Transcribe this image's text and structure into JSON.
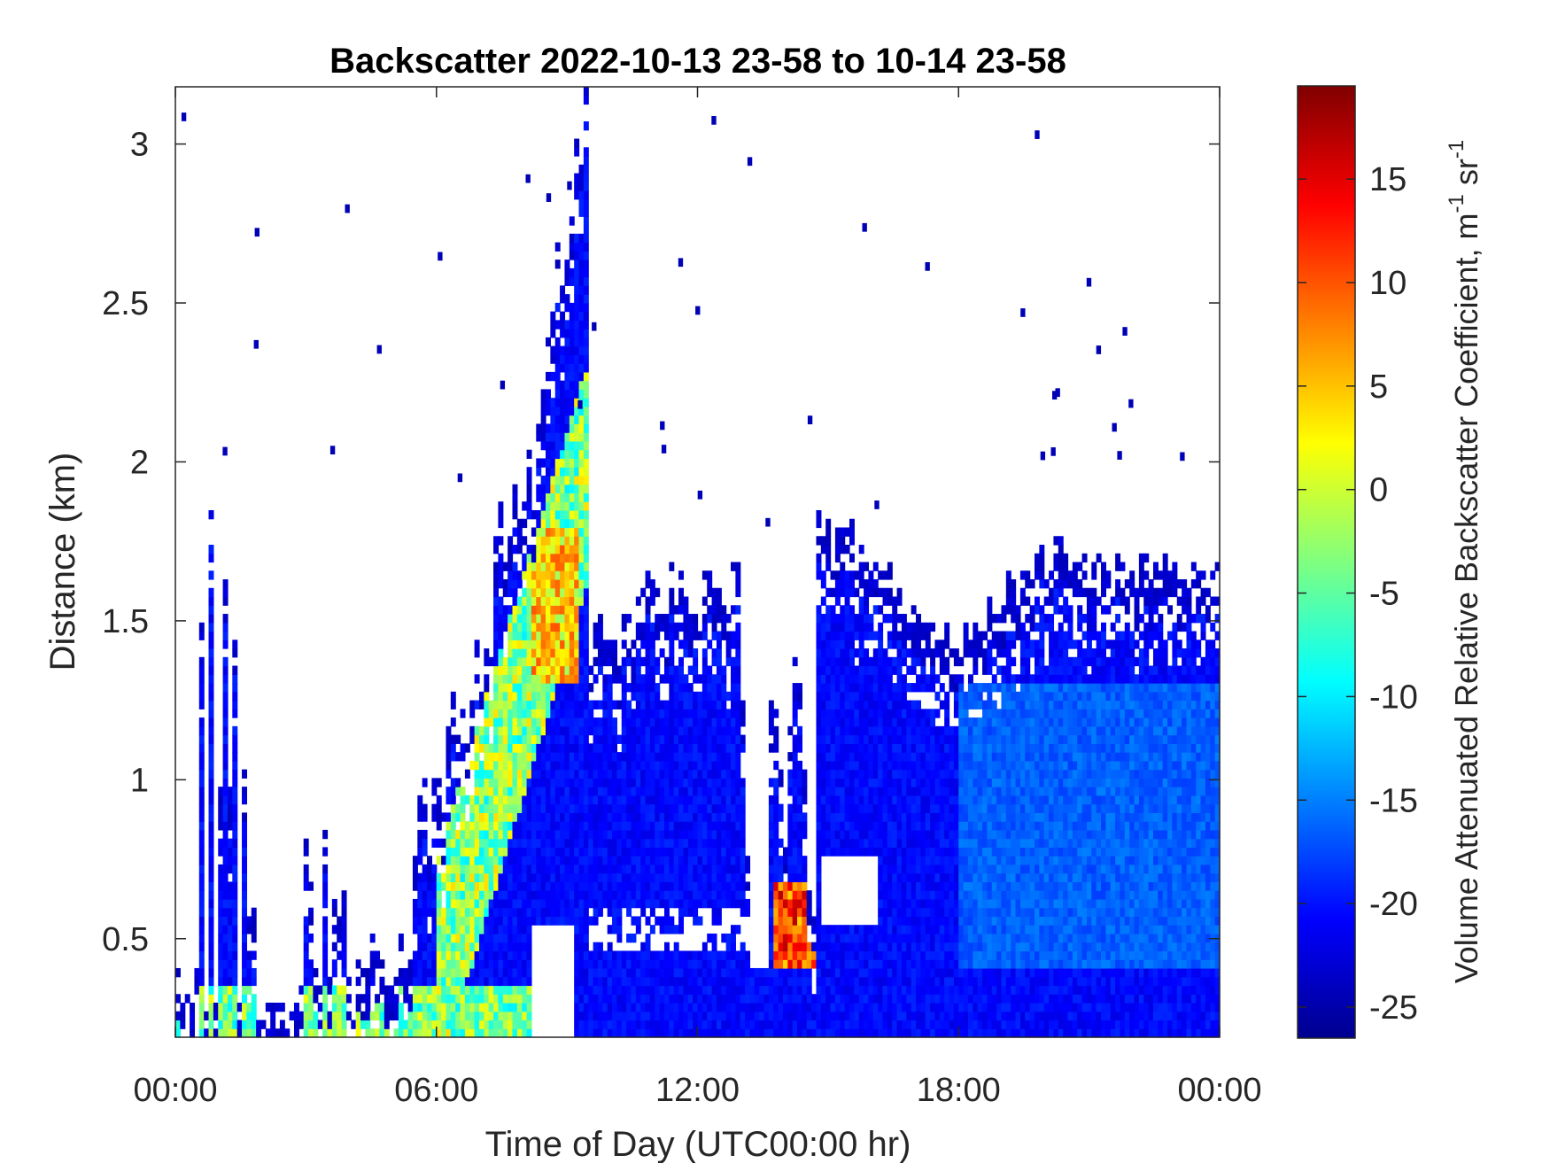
{
  "chart_data": {
    "type": "heatmap",
    "title": "Backscatter 2022-10-13 23-58 to 10-14 23-58",
    "xlabel": "Time of Day (UTC00:00 hr)",
    "ylabel": "Distance (km)",
    "xlim": [
      0,
      24
    ],
    "ylim": [
      0.19,
      3.18
    ],
    "x_ticks": [
      0,
      6,
      12,
      18,
      24
    ],
    "x_tick_labels": [
      "00:00",
      "06:00",
      "12:00",
      "18:00",
      "00:00"
    ],
    "y_ticks": [
      0.5,
      1,
      1.5,
      2,
      2.5,
      3
    ],
    "y_tick_labels": [
      "0.5",
      "1",
      "1.5",
      "2",
      "2.5",
      "3"
    ],
    "colorbar": {
      "label": "Volume Attenuated Relative Backscatter Coefficient, m",
      "label_sup_1": "-1",
      "label_unit_2": " sr",
      "label_sup_2": "-1",
      "range": [
        -26.5,
        19.5
      ],
      "ticks": [
        -25,
        -20,
        -15,
        -10,
        -5,
        0,
        5,
        10,
        15
      ],
      "tick_labels": [
        "-25",
        "-20",
        "-15",
        "-10",
        "-5",
        "0",
        "5",
        "10",
        "15"
      ],
      "colormap": "jet"
    },
    "grid": false,
    "features": [
      {
        "desc": "surface layer",
        "x_range": [
          0,
          8.2
        ],
        "y_top": 0.35,
        "value": -5
      },
      {
        "desc": "morning plume rising",
        "x_range": [
          6,
          9.5
        ],
        "y_top": 3.18,
        "value": -8
      },
      {
        "desc": "afternoon boundary layer",
        "x_range": [
          10.5,
          24
        ],
        "y_top": 1.65,
        "value": -21
      },
      {
        "desc": "low cloud burst",
        "x_range": [
          13.7,
          14.7
        ],
        "y_range": [
          0.45,
          0.65
        ],
        "value": 12
      }
    ]
  }
}
